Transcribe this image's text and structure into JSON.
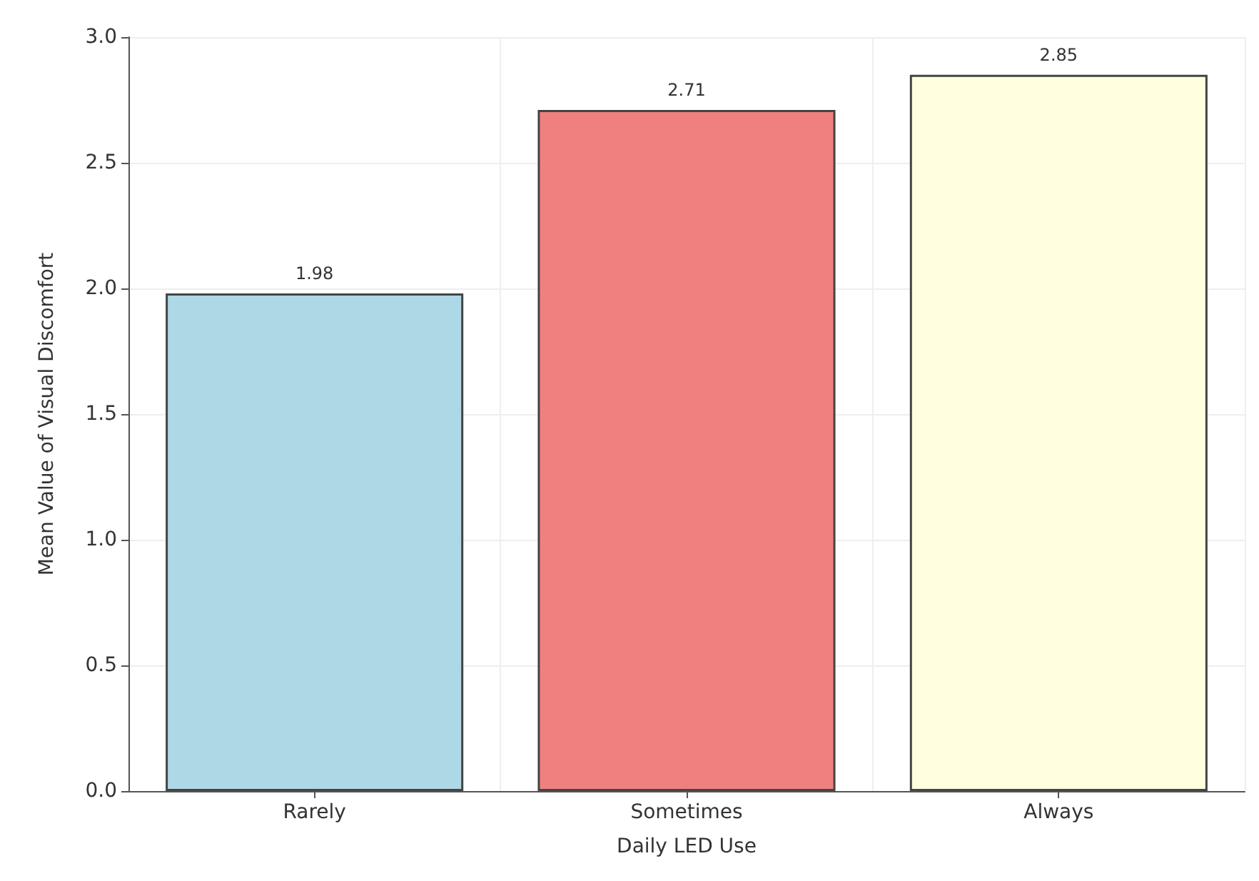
{
  "chart_data": {
    "type": "bar",
    "xlabel": "Daily LED Use",
    "ylabel": "Mean Value of Visual Discomfort",
    "categories": [
      "Rarely",
      "Sometimes",
      "Always"
    ],
    "values": [
      1.98,
      2.71,
      2.85
    ],
    "colors": [
      "#add8e6",
      "#f08080",
      "#ffffe0"
    ],
    "ylim": [
      0,
      3
    ],
    "yticks": [
      {
        "value": 0,
        "label": "0.0"
      },
      0.5,
      {
        "value": 1,
        "label": "1.0"
      },
      1.5,
      {
        "value": 2,
        "label": "2.0"
      },
      2.5,
      {
        "value": 3,
        "label": "3.0"
      }
    ],
    "grid": true,
    "data_labels": true
  }
}
